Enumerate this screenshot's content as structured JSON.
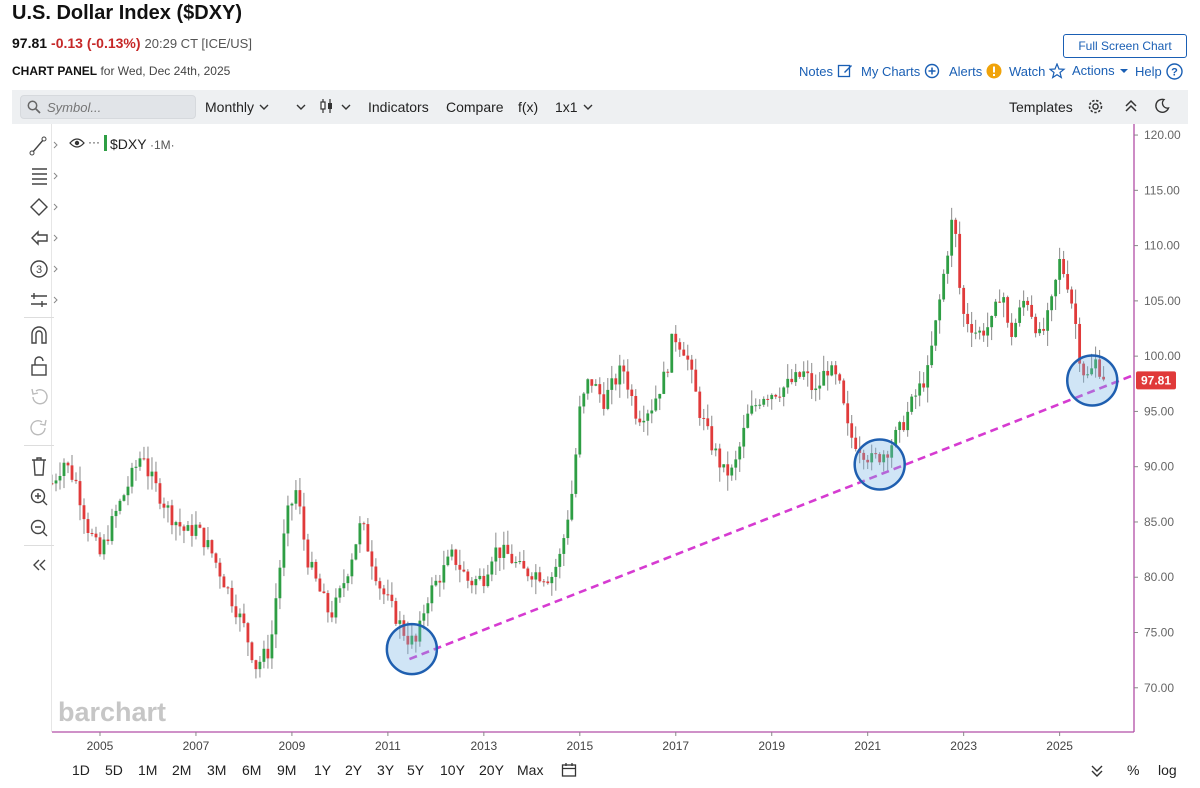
{
  "header": {
    "title": "U.S. Dollar Index ($DXY)",
    "last": "97.81",
    "change": "-0.13 (-0.13%)",
    "time": "20:29 CT [ICE/US]",
    "panel_label": "CHART PANEL",
    "panel_date": "for Wed, Dec 24th, 2025",
    "full_screen": "Full Screen Chart",
    "notes": "Notes",
    "my_charts": "My Charts",
    "alerts": "Alerts",
    "watch": "Watch",
    "actions": "Actions",
    "help": "Help"
  },
  "toolbar": {
    "symbol_placeholder": "Symbol...",
    "interval": "Monthly",
    "indicators": "Indicators",
    "compare": "Compare",
    "fx": "f(x)",
    "layout": "1x1",
    "templates": "Templates"
  },
  "sidebar": {
    "tools": [
      "line-tool-icon",
      "fib-tool-icon",
      "shape-tool-icon",
      "arrow-tool-icon",
      "counter-tool-icon",
      "measure-tool-icon",
      "magnet-icon",
      "unlock-icon",
      "undo-icon",
      "redo-icon",
      "trash-icon",
      "zoom-in-icon",
      "zoom-out-icon",
      "collapse-icon"
    ],
    "counter_label": "3"
  },
  "chart_data": {
    "type": "candlestick",
    "symbol": "$DXY",
    "interval_tag": "1M",
    "series_color_up": "#2e9e44",
    "series_color_down": "#e03a3a",
    "last_price_label": "97.81",
    "last_price_color": "#e03a3a",
    "y_ticks": [
      "120.00",
      "115.00",
      "110.00",
      "105.00",
      "100.00",
      "95.00",
      "90.00",
      "85.00",
      "80.00",
      "75.00",
      "70.00"
    ],
    "ylim": [
      66.0,
      121.0
    ],
    "x_ticks": [
      "2005",
      "2007",
      "2009",
      "2011",
      "2013",
      "2015",
      "2017",
      "2019",
      "2021",
      "2023",
      "2025"
    ],
    "xlim": [
      2004.0,
      2026.55
    ],
    "monthly_closes": [
      [
        2004.0,
        88.5
      ],
      [
        2004.25,
        90.5
      ],
      [
        2004.5,
        88.6
      ],
      [
        2004.75,
        84.5
      ],
      [
        2005.0,
        82.0
      ],
      [
        2005.3,
        85.5
      ],
      [
        2005.6,
        88.5
      ],
      [
        2005.9,
        91.5
      ],
      [
        2006.0,
        89.5
      ],
      [
        2006.3,
        87.0
      ],
      [
        2006.5,
        85.5
      ],
      [
        2006.8,
        84.0
      ],
      [
        2007.0,
        84.5
      ],
      [
        2007.3,
        82.5
      ],
      [
        2007.5,
        80.5
      ],
      [
        2007.8,
        77.5
      ],
      [
        2008.0,
        75.5
      ],
      [
        2008.25,
        72.0
      ],
      [
        2008.4,
        72.8
      ],
      [
        2008.55,
        73.5
      ],
      [
        2008.7,
        79.5
      ],
      [
        2008.9,
        85.5
      ],
      [
        2009.1,
        88.0
      ],
      [
        2009.3,
        82.0
      ],
      [
        2009.55,
        79.0
      ],
      [
        2009.8,
        76.5
      ],
      [
        2009.95,
        77.8
      ],
      [
        2010.15,
        80.5
      ],
      [
        2010.45,
        85.0
      ],
      [
        2010.6,
        82.5
      ],
      [
        2010.85,
        79.0
      ],
      [
        2011.1,
        77.0
      ],
      [
        2011.4,
        74.5
      ],
      [
        2011.6,
        74.0
      ],
      [
        2011.8,
        78.0
      ],
      [
        2012.0,
        79.5
      ],
      [
        2012.35,
        82.0
      ],
      [
        2012.7,
        79.5
      ],
      [
        2013.0,
        80.0
      ],
      [
        2013.2,
        82.5
      ],
      [
        2013.5,
        82.0
      ],
      [
        2013.8,
        80.5
      ],
      [
        2014.0,
        80.5
      ],
      [
        2014.4,
        80.0
      ],
      [
        2014.6,
        82.0
      ],
      [
        2014.85,
        88.0
      ],
      [
        2015.0,
        95.0
      ],
      [
        2015.2,
        98.0
      ],
      [
        2015.5,
        96.0
      ],
      [
        2015.9,
        99.0
      ],
      [
        2016.2,
        94.5
      ],
      [
        2016.5,
        95.5
      ],
      [
        2016.8,
        98.5
      ],
      [
        2016.95,
        102.0
      ],
      [
        2017.2,
        100.5
      ],
      [
        2017.5,
        95.0
      ],
      [
        2017.7,
        92.5
      ],
      [
        2018.0,
        89.5
      ],
      [
        2018.2,
        89.5
      ],
      [
        2018.5,
        94.5
      ],
      [
        2018.8,
        96.5
      ],
      [
        2019.2,
        97.0
      ],
      [
        2019.7,
        98.5
      ],
      [
        2019.9,
        96.5
      ],
      [
        2020.15,
        99.0
      ],
      [
        2020.4,
        97.5
      ],
      [
        2020.6,
        93.0
      ],
      [
        2020.9,
        91.5
      ],
      [
        2021.1,
        90.5
      ],
      [
        2021.4,
        91.5
      ],
      [
        2021.7,
        93.5
      ],
      [
        2021.95,
        96.0
      ],
      [
        2022.25,
        98.5
      ],
      [
        2022.5,
        105.0
      ],
      [
        2022.75,
        112.0
      ],
      [
        2022.85,
        110.5
      ],
      [
        2022.95,
        104.0
      ],
      [
        2023.3,
        102.0
      ],
      [
        2023.6,
        103.0
      ],
      [
        2023.8,
        106.5
      ],
      [
        2023.95,
        101.5
      ],
      [
        2024.3,
        105.5
      ],
      [
        2024.6,
        101.5
      ],
      [
        2024.8,
        104.0
      ],
      [
        2025.0,
        108.5
      ],
      [
        2025.15,
        107.0
      ],
      [
        2025.3,
        104.0
      ],
      [
        2025.45,
        99.0
      ],
      [
        2025.6,
        98.0
      ],
      [
        2025.75,
        99.5
      ],
      [
        2025.98,
        97.81
      ]
    ],
    "trendline": {
      "from": [
        2011.45,
        72.6
      ],
      "to": [
        2026.55,
        98.3
      ],
      "color": "#d63bd1",
      "style": "dashed"
    },
    "circled_points": [
      [
        2011.5,
        73.5
      ],
      [
        2021.25,
        90.2
      ],
      [
        2025.68,
        97.8
      ]
    ],
    "watermark": "barchart"
  },
  "bottombar": {
    "ranges": [
      "1D",
      "5D",
      "1M",
      "2M",
      "3M",
      "6M",
      "9M",
      "1Y",
      "2Y",
      "3Y",
      "5Y",
      "10Y",
      "20Y",
      "Max"
    ],
    "percent": "%",
    "log": "log"
  }
}
